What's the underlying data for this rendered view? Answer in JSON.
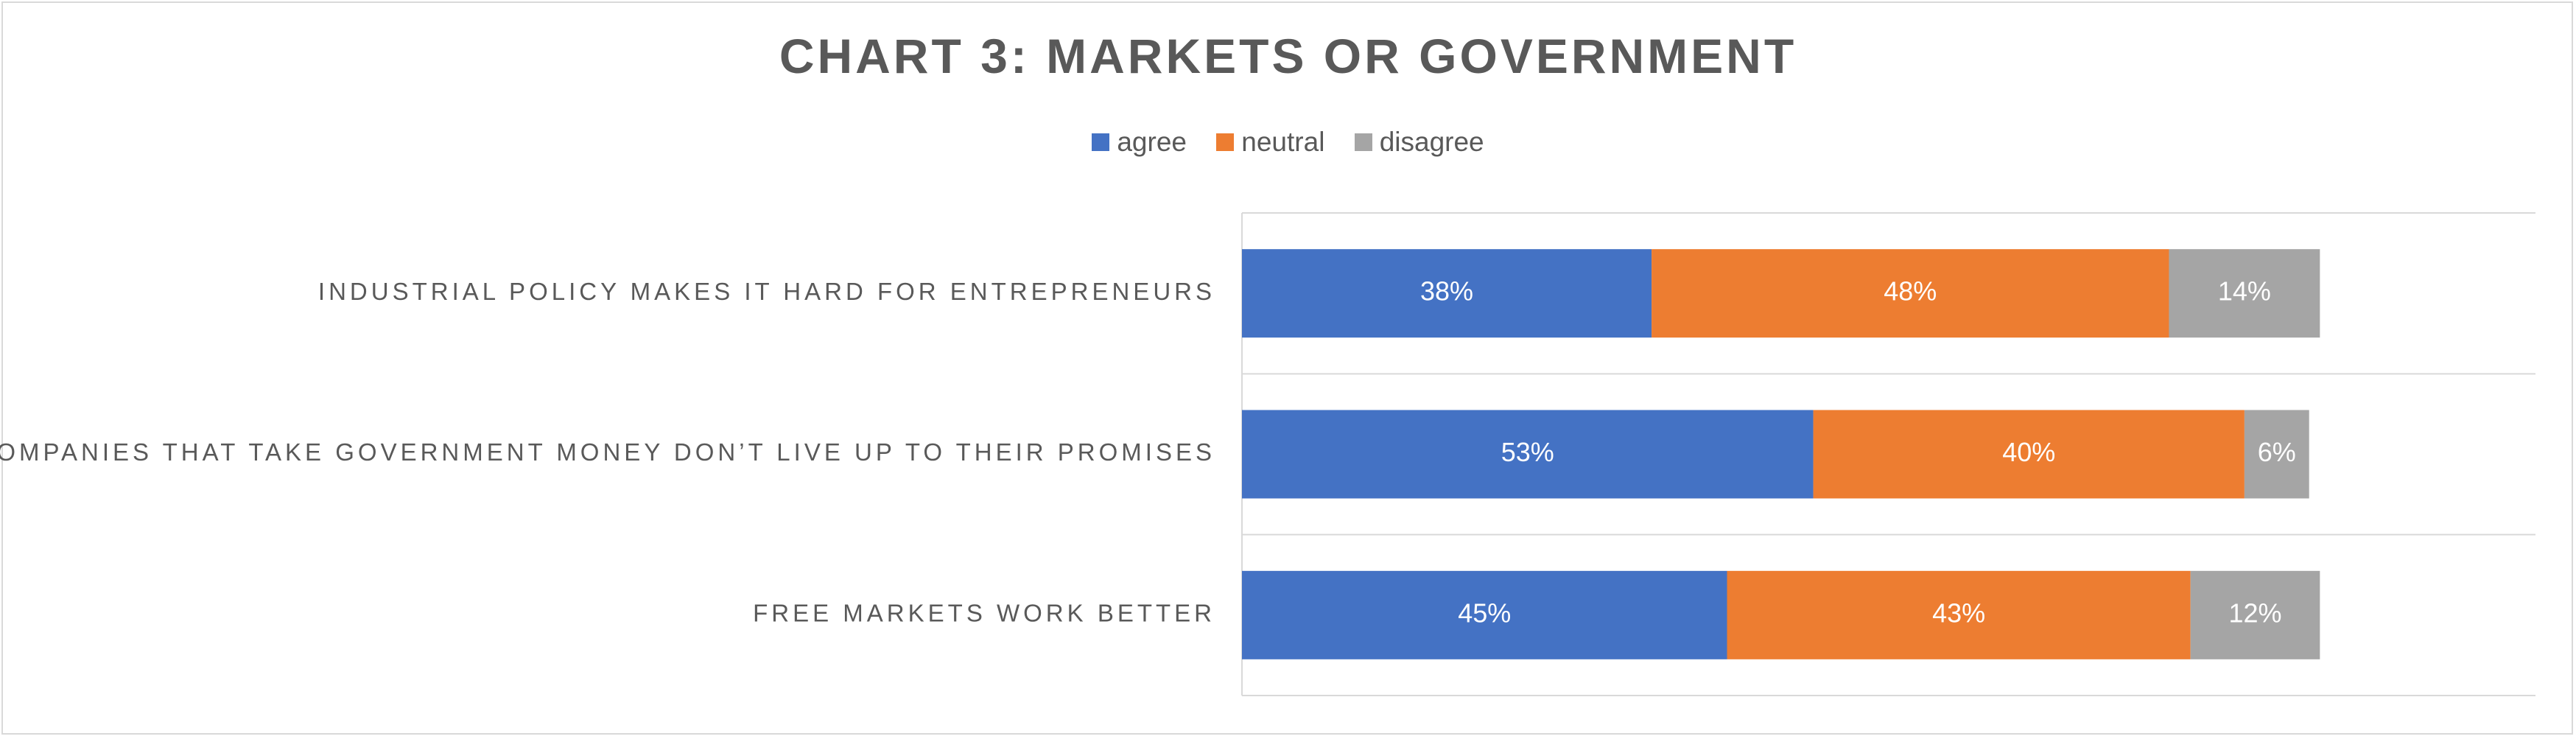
{
  "chart_data": {
    "type": "bar",
    "orientation": "horizontal",
    "stacked": true,
    "title": "CHART 3: MARKETS OR GOVERNMENT",
    "categories": [
      "INDUSTRIAL POLICY MAKES IT HARD FOR ENTREPRENEURS",
      "COMPANIES THAT TAKE GOVERNMENT MONEY DON’T LIVE UP TO THEIR PROMISES",
      "FREE MARKETS WORK BETTER"
    ],
    "series": [
      {
        "name": "agree",
        "color": "#4472c4",
        "values": [
          38,
          53,
          45
        ],
        "labels": [
          "38%",
          "53%",
          "45%"
        ]
      },
      {
        "name": "neutral",
        "color": "#ed7d31",
        "values": [
          48,
          40,
          43
        ],
        "labels": [
          "48%",
          "40%",
          "43%"
        ]
      },
      {
        "name": "disagree",
        "color": "#a5a5a5",
        "values": [
          14,
          6,
          12
        ],
        "labels": [
          "14%",
          "6%",
          "12%"
        ]
      }
    ],
    "legend_position": "top",
    "grid": true,
    "xlim": [
      0,
      120
    ]
  }
}
